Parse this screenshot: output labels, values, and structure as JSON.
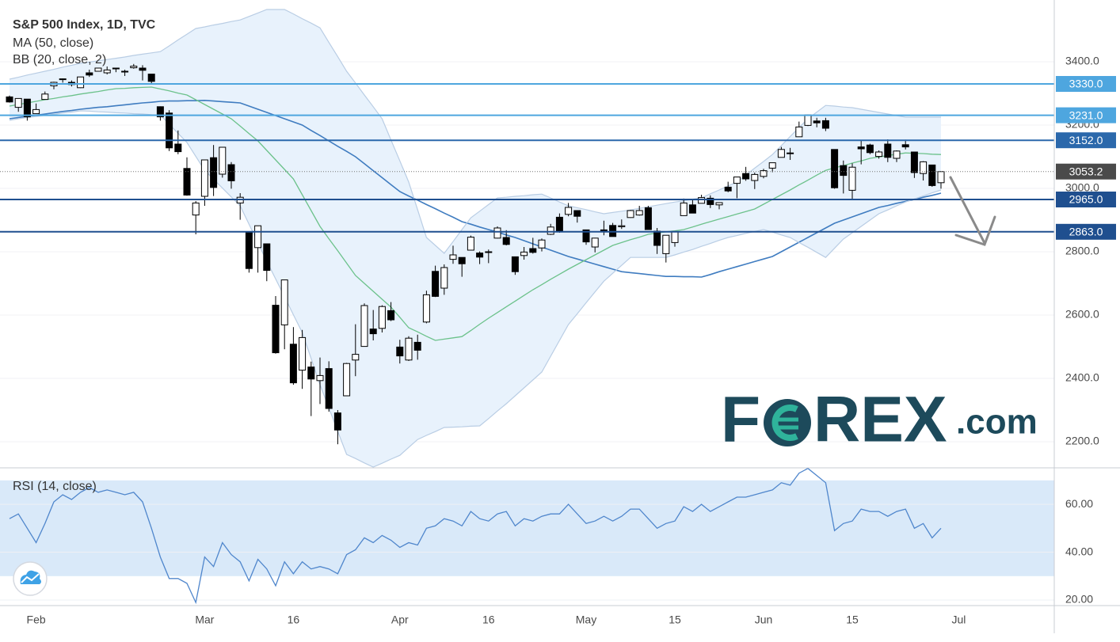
{
  "chart_data": [
    {
      "type": "candlestick",
      "title": "S&P 500 Index, 1D, TVC",
      "categories": [
        null,
        null,
        null,
        "Feb",
        null,
        null,
        null,
        null,
        null,
        null,
        null,
        null,
        null,
        null,
        null,
        null,
        null,
        null,
        null,
        null,
        null,
        null,
        "Mar",
        null,
        null,
        null,
        null,
        null,
        null,
        null,
        null,
        null,
        "16",
        null,
        null,
        null,
        null,
        null,
        null,
        null,
        null,
        null,
        null,
        null,
        "Apr",
        null,
        null,
        null,
        null,
        null,
        null,
        null,
        null,
        null,
        "16",
        null,
        null,
        null,
        null,
        null,
        null,
        null,
        null,
        null,
        null,
        "May",
        null,
        null,
        null,
        null,
        null,
        null,
        null,
        null,
        null,
        "15",
        null,
        null,
        null,
        null,
        null,
        null,
        null,
        null,
        null,
        "Jun",
        null,
        null,
        null,
        null,
        null,
        null,
        null,
        null,
        null,
        "15",
        null,
        null,
        null,
        null,
        null,
        null,
        null,
        null,
        null,
        null,
        null,
        "Jul"
      ],
      "open": [
        3289,
        3256,
        3282,
        3236,
        3281,
        3324,
        3344,
        3335,
        3318,
        3365,
        3370,
        3365,
        3378,
        3370,
        3381,
        3380,
        3361,
        3258,
        3238,
        3140,
        3063,
        2916,
        2975,
        3097,
        3045,
        3075,
        2954,
        2863,
        2813,
        2825,
        2631,
        2569,
        2508,
        2426,
        2436,
        2393,
        2431,
        2291,
        2345,
        2458,
        2501,
        2556,
        2558,
        2614,
        2499,
        2458,
        2514,
        2578,
        2738,
        2685,
        2776,
        2782,
        2805,
        2796,
        2799,
        2843,
        2845,
        2784,
        2788,
        2810,
        2812,
        2855,
        2909,
        2918,
        2930,
        2869,
        2815,
        2869,
        2883,
        2879,
        2908,
        2916,
        2939,
        2865,
        2794,
        2829,
        2914,
        2948,
        2953,
        2969,
        2948,
        3004,
        3016,
        3047,
        3025,
        3038,
        3064,
        3098,
        3111,
        3163,
        3199,
        3213,
        3214,
        3123,
        3072,
        2994,
        3131,
        3137,
        3101,
        3140,
        3095,
        3138,
        3115,
        3047,
        3074,
        3018,
        null,
        null
      ],
      "high": [
        3293,
        3285,
        3282,
        3268,
        3306,
        3337,
        3347,
        3341,
        3352,
        3375,
        3381,
        3385,
        3381,
        3375,
        3393,
        3389,
        3361,
        3259,
        3247,
        3183,
        3098,
        2960,
        3090,
        3137,
        3130,
        3083,
        2985,
        2863,
        2882,
        2826,
        2660,
        2711,
        2562,
        2553,
        2453,
        2466,
        2454,
        2300,
        2449,
        2571,
        2637,
        2616,
        2631,
        2641,
        2522,
        2533,
        2538,
        2677,
        2756,
        2760,
        2819,
        2782,
        2851,
        2801,
        2807,
        2880,
        2868,
        2785,
        2815,
        2844,
        2842,
        2888,
        2921,
        2954,
        2930,
        2869,
        2844,
        2898,
        2891,
        2902,
        2932,
        2945,
        2945,
        2875,
        2852,
        2865,
        2968,
        2964,
        2980,
        2978,
        2956,
        3021,
        3036,
        3068,
        3050,
        3062,
        3081,
        3131,
        3128,
        3211,
        3233,
        3223,
        3223,
        3123,
        3088,
        3079,
        3153,
        3141,
        3120,
        3155,
        3120,
        3154,
        3116,
        3086,
        3074,
        3053,
        null,
        null
      ],
      "low": [
        3271,
        3242,
        3214,
        3235,
        3280,
        3313,
        3334,
        3322,
        3317,
        3352,
        3369,
        3360,
        3367,
        3355,
        3378,
        3341,
        3328,
        3214,
        3118,
        3108,
        2977,
        2855,
        2945,
        2976,
        3034,
        2999,
        2901,
        2734,
        2734,
        2707,
        2478,
        2492,
        2380,
        2367,
        2281,
        2319,
        2295,
        2192,
        2345,
        2407,
        2500,
        2520,
        2545,
        2581,
        2447,
        2455,
        2459,
        2574,
        2657,
        2664,
        2762,
        2721,
        2805,
        2761,
        2764,
        2842,
        2820,
        2727,
        2775,
        2794,
        2801,
        2853,
        2860,
        2912,
        2892,
        2822,
        2798,
        2852,
        2848,
        2872,
        2907,
        2914,
        2870,
        2793,
        2766,
        2816,
        2914,
        2922,
        2953,
        2938,
        2934,
        2988,
        2969,
        3024,
        2998,
        3032,
        3051,
        3098,
        3090,
        3163,
        3197,
        3193,
        3181,
        2999,
        2984,
        2966,
        3076,
        3108,
        3094,
        3083,
        3083,
        3123,
        3033,
        3025,
        3005,
        2999,
        null,
        null
      ],
      "close": [
        3273,
        3284,
        3226,
        3249,
        3298,
        3335,
        3346,
        3328,
        3352,
        3358,
        3380,
        3374,
        3380,
        3370,
        3386,
        3373,
        3338,
        3226,
        3128,
        3116,
        2979,
        2954,
        3090,
        3003,
        3130,
        3024,
        2972,
        2747,
        2882,
        2741,
        2481,
        2711,
        2386,
        2529,
        2398,
        2409,
        2305,
        2237,
        2447,
        2476,
        2630,
        2541,
        2627,
        2585,
        2471,
        2527,
        2489,
        2664,
        2659,
        2750,
        2790,
        2762,
        2846,
        2783,
        2800,
        2875,
        2823,
        2737,
        2799,
        2798,
        2837,
        2878,
        2863,
        2940,
        2912,
        2831,
        2843,
        2868,
        2848,
        2882,
        2930,
        2930,
        2870,
        2820,
        2852,
        2864,
        2954,
        2922,
        2971,
        2949,
        2955,
        2992,
        3036,
        3030,
        3044,
        3056,
        3081,
        3123,
        3112,
        3194,
        3232,
        3207,
        3190,
        3002,
        3041,
        3067,
        3125,
        3113,
        3115,
        3098,
        3118,
        3131,
        3050,
        3084,
        3009,
        3053,
        null,
        null
      ],
      "up_color": "#ffffff",
      "down_color": "#000000",
      "overlays": [
        {
          "name": "MA (50, close)",
          "color": "#3f7cc0",
          "values": [
            3220,
            3224,
            3228,
            3231,
            3235,
            3239,
            3243,
            3246,
            3250,
            3253,
            3256,
            3258,
            3261,
            3264,
            3267,
            3270,
            3272,
            3275,
            3276,
            3276,
            3277,
            3277,
            3278,
            3276,
            3274,
            3272,
            3270,
            3260,
            3250,
            3240,
            3230,
            3220,
            3210,
            3200,
            3183,
            3167,
            3150,
            3133,
            3117,
            3100,
            3078,
            3056,
            3034,
            3012,
            2990,
            2976,
            2963,
            2949,
            2936,
            2922,
            2909,
            2895,
            2887,
            2878,
            2870,
            2862,
            2853,
            2845,
            2835,
            2825,
            2815,
            2805,
            2795,
            2785,
            2777,
            2769,
            2761,
            2753,
            2745,
            2737,
            2734,
            2731,
            2728,
            2725,
            2722,
            2722,
            2721,
            2721,
            2720,
            2728,
            2737,
            2745,
            2753,
            2761,
            2769,
            2777,
            2785,
            2800,
            2815,
            2830,
            2845,
            2860,
            2875,
            2890,
            2900,
            2910,
            2920,
            2930,
            2940,
            2946,
            2953,
            2959,
            2965,
            2972,
            2978,
            2985,
            null,
            null
          ]
        },
        {
          "name": "BB (20, close, 2)",
          "color": "#6cc28b",
          "band_color": "#b9cde4",
          "fill": "#e8f2fc",
          "upper": [
            3345,
            3351,
            3358,
            3364,
            3370,
            3376,
            3383,
            3389,
            3395,
            3399,
            3403,
            3407,
            3411,
            3415,
            3420,
            3424,
            3428,
            3432,
            3450,
            3469,
            3487,
            3505,
            3510,
            3516,
            3521,
            3527,
            3532,
            3543,
            3554,
            3565,
            3565,
            3565,
            3551,
            3536,
            3522,
            3507,
            3461,
            3416,
            3370,
            3333,
            3295,
            3258,
            3220,
            3153,
            3087,
            3020,
            2933,
            2845,
            2820,
            2795,
            2832,
            2870,
            2907,
            2928,
            2949,
            2970,
            2972,
            2975,
            2977,
            2980,
            2982,
            2970,
            2957,
            2945,
            2939,
            2933,
            2926,
            2920,
            2924,
            2928,
            2932,
            2937,
            2942,
            2947,
            2952,
            2957,
            2961,
            2966,
            2970,
            2983,
            2995,
            3008,
            3020,
            3042,
            3064,
            3085,
            3107,
            3135,
            3164,
            3192,
            3220,
            3241,
            3262,
            3260,
            3257,
            3255,
            3250,
            3245,
            3240,
            3235,
            3230,
            3225,
            3225,
            3225,
            3225,
            3225,
            null,
            null
          ],
          "basis": [
            3260,
            3265,
            3270,
            3275,
            3280,
            3284,
            3289,
            3293,
            3298,
            3302,
            3306,
            3311,
            3315,
            3316,
            3318,
            3319,
            3320,
            3314,
            3308,
            3301,
            3295,
            3280,
            3265,
            3250,
            3235,
            3220,
            3197,
            3173,
            3150,
            3120,
            3090,
            3060,
            3030,
            2980,
            2930,
            2880,
            2841,
            2803,
            2764,
            2725,
            2700,
            2675,
            2650,
            2625,
            2593,
            2560,
            2547,
            2533,
            2520,
            2524,
            2528,
            2532,
            2551,
            2571,
            2590,
            2608,
            2626,
            2644,
            2662,
            2680,
            2696,
            2713,
            2729,
            2745,
            2760,
            2775,
            2790,
            2805,
            2820,
            2829,
            2838,
            2846,
            2855,
            2859,
            2863,
            2866,
            2870,
            2878,
            2887,
            2895,
            2903,
            2911,
            2919,
            2927,
            2935,
            2950,
            2965,
            2980,
            2995,
            3011,
            3026,
            3042,
            3057,
            3065,
            3072,
            3080,
            3087,
            3095,
            3099,
            3104,
            3108,
            3112,
            3111,
            3110,
            3108,
            3107,
            null,
            null
          ],
          "lower": [
            3215,
            3220,
            3224,
            3227,
            3231,
            3234,
            3238,
            3241,
            3245,
            3244,
            3242,
            3241,
            3239,
            3238,
            3236,
            3235,
            3233,
            3232,
            3203,
            3174,
            3145,
            3101,
            3057,
            3029,
            3001,
            2973,
            2945,
            2887,
            2828,
            2770,
            2714,
            2658,
            2601,
            2545,
            2463,
            2380,
            2307,
            2233,
            2160,
            2147,
            2133,
            2120,
            2132,
            2145,
            2157,
            2182,
            2207,
            2220,
            2232,
            2245,
            2246,
            2247,
            2249,
            2250,
            2273,
            2297,
            2320,
            2345,
            2370,
            2395,
            2420,
            2470,
            2520,
            2570,
            2604,
            2639,
            2673,
            2707,
            2732,
            2757,
            2782,
            2782,
            2782,
            2782,
            2782,
            2790,
            2799,
            2807,
            2817,
            2826,
            2836,
            2845,
            2851,
            2858,
            2864,
            2870,
            2862,
            2853,
            2845,
            2829,
            2814,
            2798,
            2782,
            2811,
            2840,
            2860,
            2880,
            2900,
            2920,
            2932,
            2945,
            2957,
            2967,
            2976,
            2986,
            2995,
            null,
            null
          ]
        }
      ],
      "levels": [
        {
          "value": 3330,
          "label": "3330.0",
          "color": "#4ea6df"
        },
        {
          "value": 3231,
          "label": "3231.0",
          "color": "#4ea6df"
        },
        {
          "value": 3152,
          "label": "3152.0",
          "color": "#2b68ab"
        },
        {
          "value": 2965,
          "label": "2965.0",
          "color": "#1f4f8f"
        },
        {
          "value": 2863,
          "label": "2863.0",
          "color": "#1f4f8f"
        }
      ],
      "last_price": {
        "value": 3053.2,
        "label": "3053.2",
        "color": "#4a4a4a"
      },
      "ylim": [
        2117.5,
        3595
      ],
      "yticks": [
        {
          "value": 2200,
          "label": "2200.0"
        },
        {
          "value": 2400,
          "label": "2400.0"
        },
        {
          "value": 2600,
          "label": "2600.0"
        },
        {
          "value": 2800,
          "label": "2800.0"
        },
        {
          "value": 3000,
          "label": "3000.0"
        },
        {
          "value": 3200,
          "label": "3200.0"
        },
        {
          "value": 3400,
          "label": "3400.0"
        }
      ],
      "grid": true
    },
    {
      "type": "line",
      "title": "RSI (14, close)",
      "color": "#4f86cc",
      "band": [
        30,
        70
      ],
      "band_color": "#d9e9f9",
      "values": [
        54,
        56,
        50,
        44,
        52,
        61,
        64,
        62,
        65,
        67,
        65,
        66,
        65,
        64,
        65,
        61,
        50,
        38,
        29,
        29,
        27,
        19,
        38,
        34,
        44,
        39,
        36,
        28,
        37,
        33,
        26,
        36,
        31,
        36,
        33,
        34,
        33,
        31,
        39,
        41,
        46,
        44,
        47,
        45,
        42,
        44,
        43,
        50,
        51,
        54,
        53,
        51,
        57,
        54,
        53,
        56,
        57,
        51,
        54,
        53,
        55,
        56,
        56,
        60,
        56,
        52,
        53,
        55,
        53,
        55,
        58,
        58,
        54,
        50,
        52,
        53,
        59,
        57,
        60,
        57,
        59,
        61,
        63,
        63,
        64,
        65,
        66,
        69,
        68,
        73,
        75,
        72,
        69,
        49,
        52,
        53,
        58,
        57,
        57,
        55,
        57,
        58,
        50,
        52,
        46,
        50,
        null,
        null
      ],
      "ylim": [
        17.7,
        74.9
      ],
      "yticks": [
        {
          "value": 20,
          "label": "20.00"
        },
        {
          "value": 40,
          "label": "40.00"
        },
        {
          "value": 60,
          "label": "60.00"
        }
      ],
      "grid": true
    }
  ],
  "logo": {
    "lead": "F",
    "tail": "REX",
    "domain": ".com"
  }
}
